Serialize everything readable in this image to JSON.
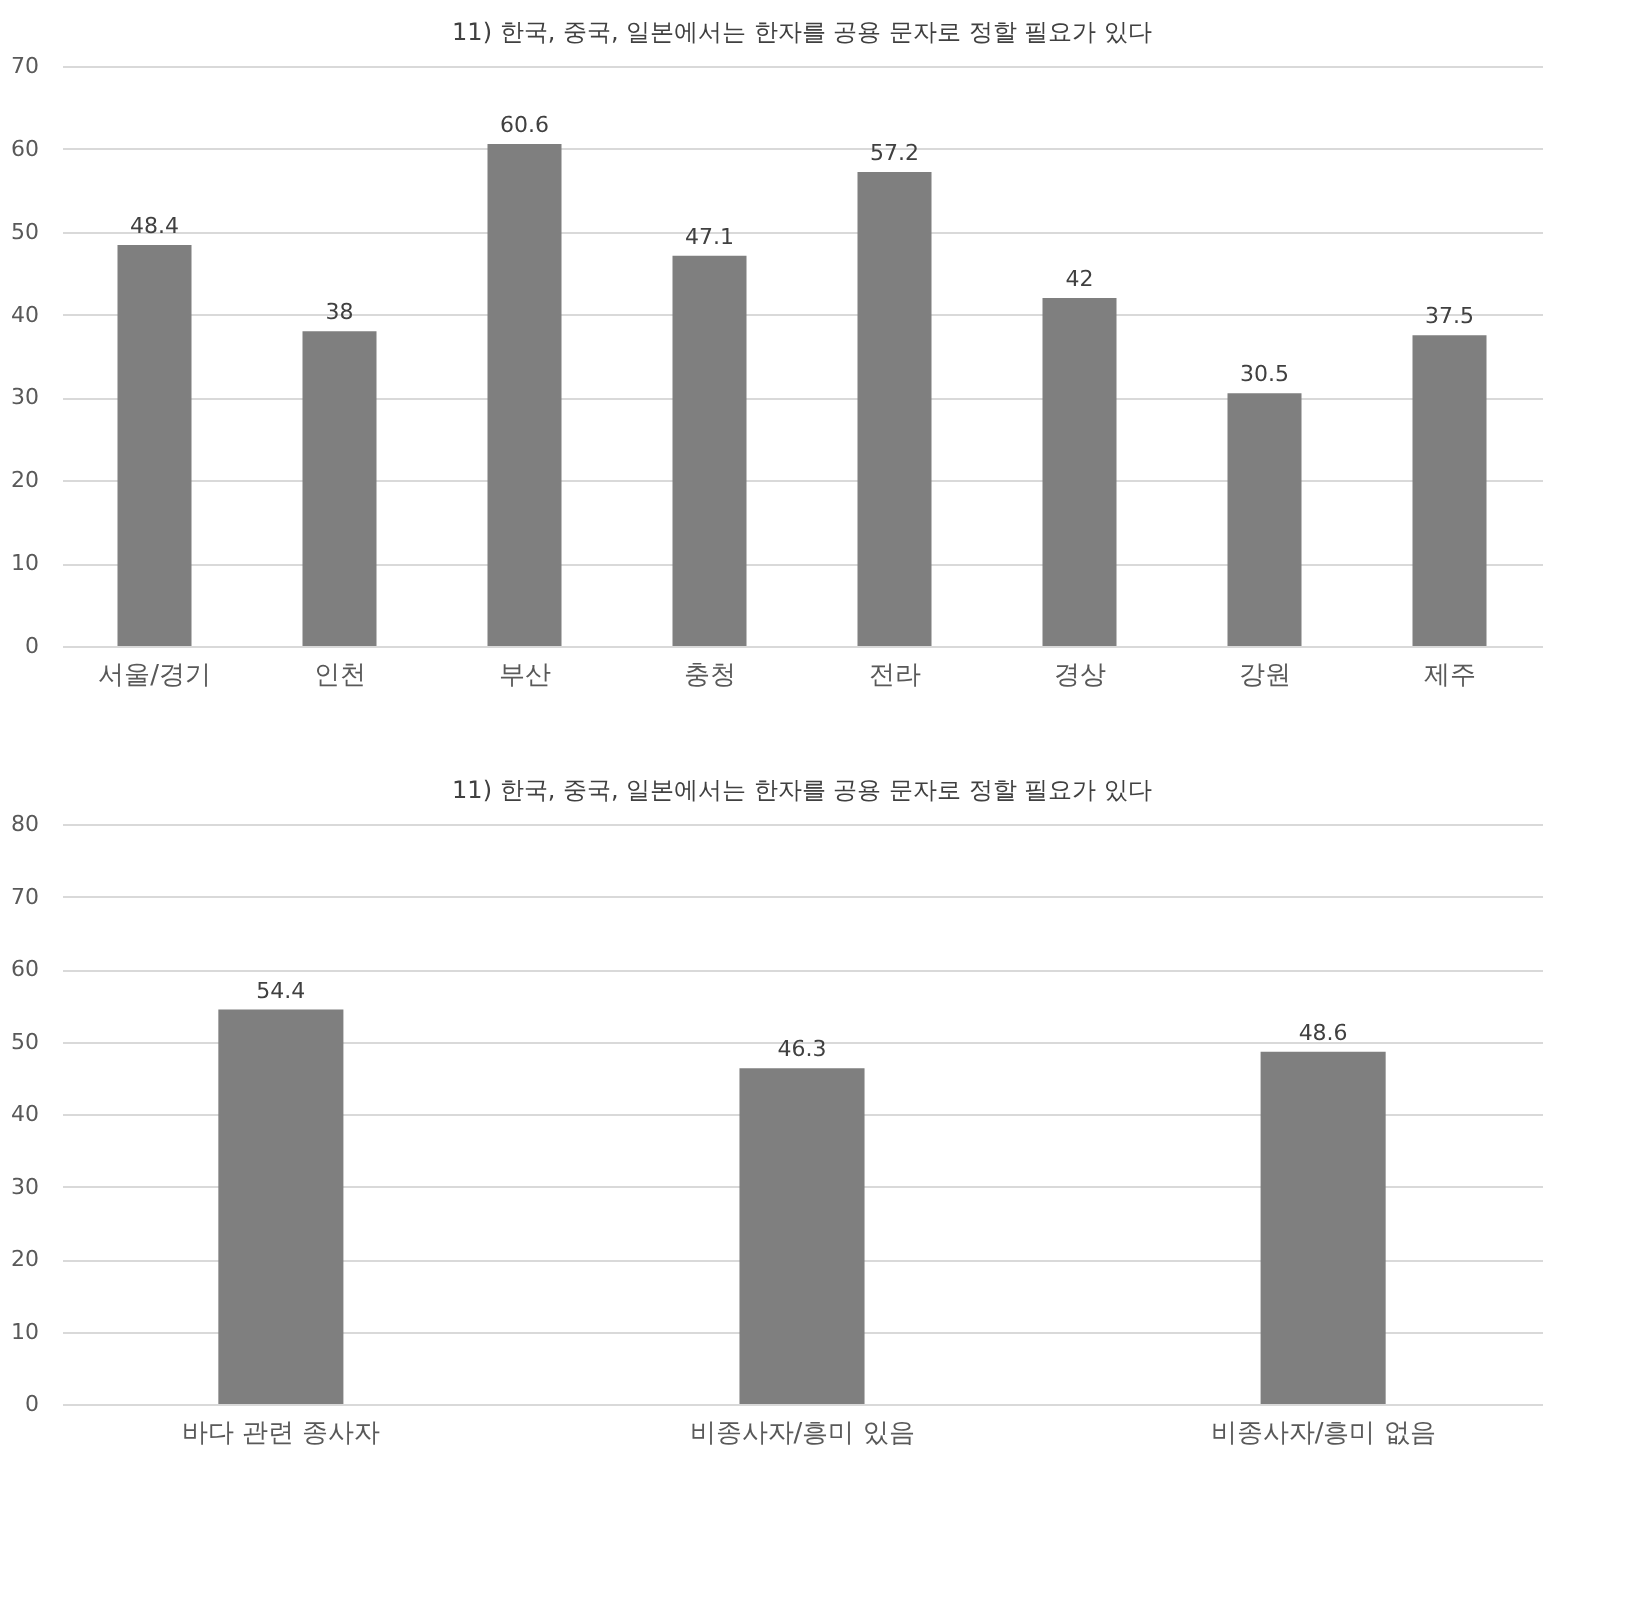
{
  "chart_data": [
    {
      "type": "bar",
      "title": "11) 한국, 중국, 일본에서는 한자를 공용 문자로 정할 필요가 있다",
      "categories": [
        "서울/경기",
        "인천",
        "부산",
        "충청",
        "전라",
        "경상",
        "강원",
        "제주"
      ],
      "values": [
        48.4,
        38,
        60.6,
        47.1,
        57.2,
        42,
        30.5,
        37.5
      ],
      "color": "#7f7f7f",
      "ylim": [
        0,
        70
      ],
      "yticks": [
        0,
        10,
        20,
        30,
        40,
        50,
        60,
        70
      ],
      "grid": "y",
      "data_labels": true
    },
    {
      "type": "bar",
      "title": "11) 한국, 중국, 일본에서는 한자를 공용 문자로 정할 필요가 있다",
      "categories": [
        "바다 관련 종사자",
        "비종사자/흥미 있음",
        "비종사자/흥미 없음"
      ],
      "values": [
        54.4,
        46.3,
        48.6
      ],
      "color": "#7f7f7f",
      "ylim": [
        0,
        80
      ],
      "yticks": [
        0,
        10,
        20,
        30,
        40,
        50,
        60,
        70,
        80
      ],
      "grid": "y",
      "data_labels": true
    }
  ]
}
